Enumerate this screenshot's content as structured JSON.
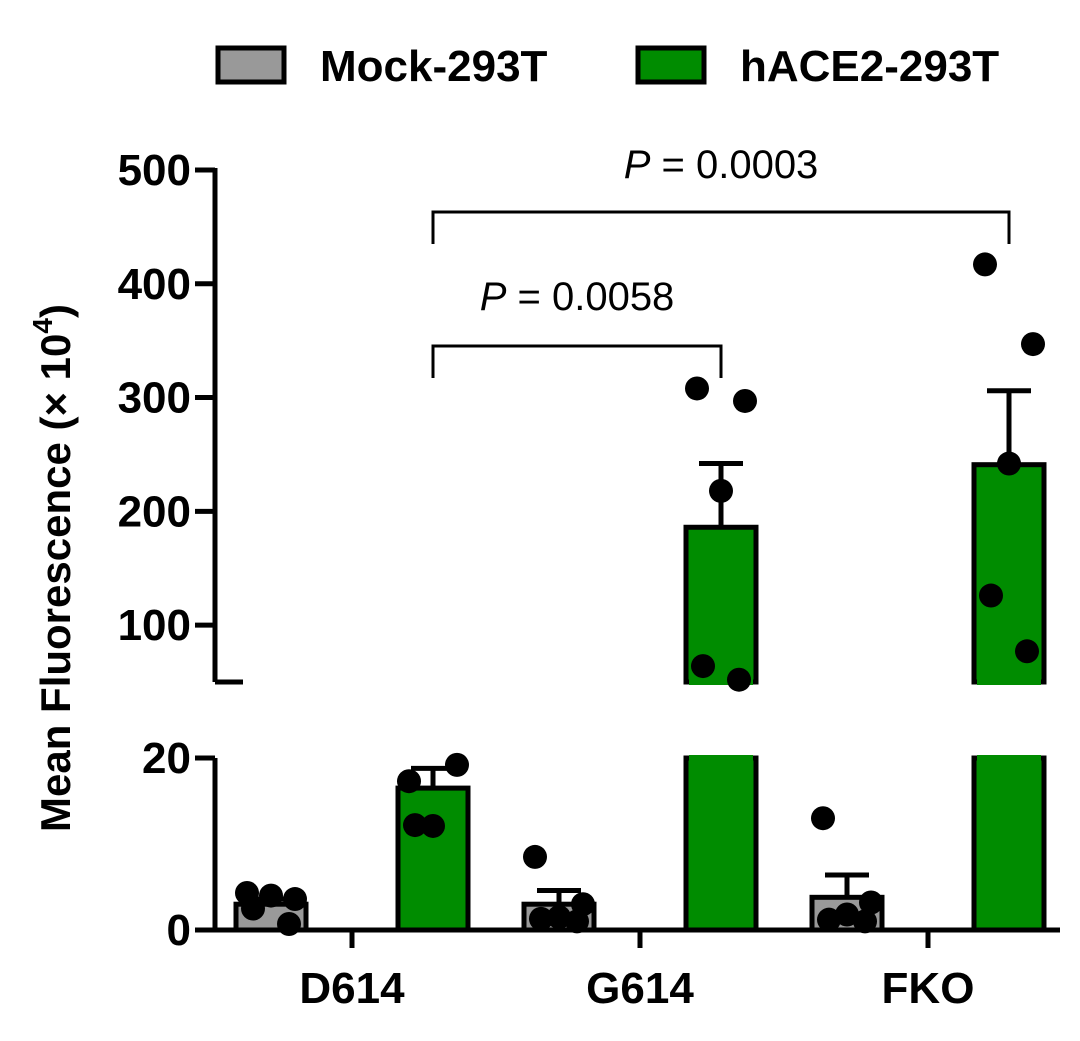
{
  "legend": [
    {
      "label": "Mock-293T",
      "color": "#999999"
    },
    {
      "label": "hACE2-293T",
      "color": "#008c00"
    }
  ],
  "ylabel": "Mean Fluorescence (× 10",
  "ylabel_sup": "4",
  "ylabel_close": ")",
  "pvalues": [
    {
      "italic": "P",
      "text": " = 0.0058",
      "from": "D614",
      "to": "G614"
    },
    {
      "italic": "P",
      "text": " = 0.0003",
      "from": "D614",
      "to": "FKO"
    }
  ],
  "chart_data": {
    "type": "bar",
    "categories": [
      "D614",
      "G614",
      "FKO"
    ],
    "series": [
      {
        "name": "Mock-293T",
        "color": "#999999",
        "values": [
          3.0,
          3.0,
          3.8
        ],
        "errors": [
          0.6,
          1.6,
          2.6
        ],
        "points": [
          [
            4.3,
            3.6,
            4.0,
            2.5,
            0.7
          ],
          [
            8.5,
            3.0,
            1.5,
            1.3,
            1.0
          ],
          [
            13.0,
            3.2,
            1.8,
            1.2,
            1.0
          ]
        ]
      },
      {
        "name": "hACE2-293T",
        "color": "#008c00",
        "values": [
          16.5,
          186,
          241
        ],
        "errors": [
          2.3,
          56,
          65
        ],
        "points": [
          [
            17.3,
            19.2,
            12.1,
            12.2
          ],
          [
            308,
            297,
            218,
            64,
            52
          ],
          [
            417,
            347,
            242,
            126,
            77
          ]
        ]
      }
    ],
    "yaxis_segments": [
      {
        "range": [
          0,
          20
        ],
        "ticks": [
          0,
          20
        ],
        "tick_labels": [
          "0",
          "20"
        ]
      },
      {
        "range": [
          50,
          500
        ],
        "ticks": [
          100,
          200,
          300,
          400,
          500
        ],
        "tick_labels": [
          "100",
          "200",
          "300",
          "400",
          "500"
        ]
      }
    ],
    "axis_break": true,
    "grid": false,
    "legend_position": "top"
  }
}
